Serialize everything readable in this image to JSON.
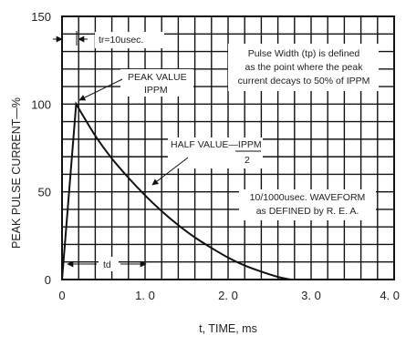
{
  "chart_data": {
    "type": "line",
    "xlabel": "t, TIME, ms",
    "ylabel": "PEAK PULSE CURRENT—%",
    "xlim": [
      0,
      4.0
    ],
    "ylim": [
      0,
      150
    ],
    "x_ticks": [
      "0",
      "1. 0",
      "2. 0",
      "3. 0",
      "4. 0"
    ],
    "x_tick_values": [
      0,
      1,
      2,
      3,
      4
    ],
    "y_ticks": [
      "0",
      "50",
      "100",
      "150"
    ],
    "y_tick_values": [
      0,
      50,
      100,
      150
    ],
    "grid": true,
    "series": [
      {
        "x": [
          0.0,
          0.17,
          0.4,
          0.6,
          0.8,
          1.0,
          1.2,
          1.4,
          1.6,
          1.8,
          2.0,
          2.2,
          2.4,
          2.6,
          2.75
        ],
        "y": [
          0,
          100,
          82,
          69,
          58,
          48,
          39,
          31,
          24,
          18,
          12.5,
          8,
          4.5,
          1.5,
          0
        ]
      }
    ],
    "annotations": {
      "tr": "tr=10usec.",
      "peak_value": "PEAK VALUE",
      "peak_symbol": "IPPM",
      "half_value": "HALF VALUE—IPPM",
      "half_denominator": "2",
      "pulse_width_note": [
        "Pulse Width (tp) is defined",
        "as the point where the peak",
        "current decays to 50% of IPPM"
      ],
      "waveform_note": [
        "10/1000usec. WAVEFORM",
        "as DEFINED by R. E. A."
      ],
      "td": "td"
    }
  }
}
